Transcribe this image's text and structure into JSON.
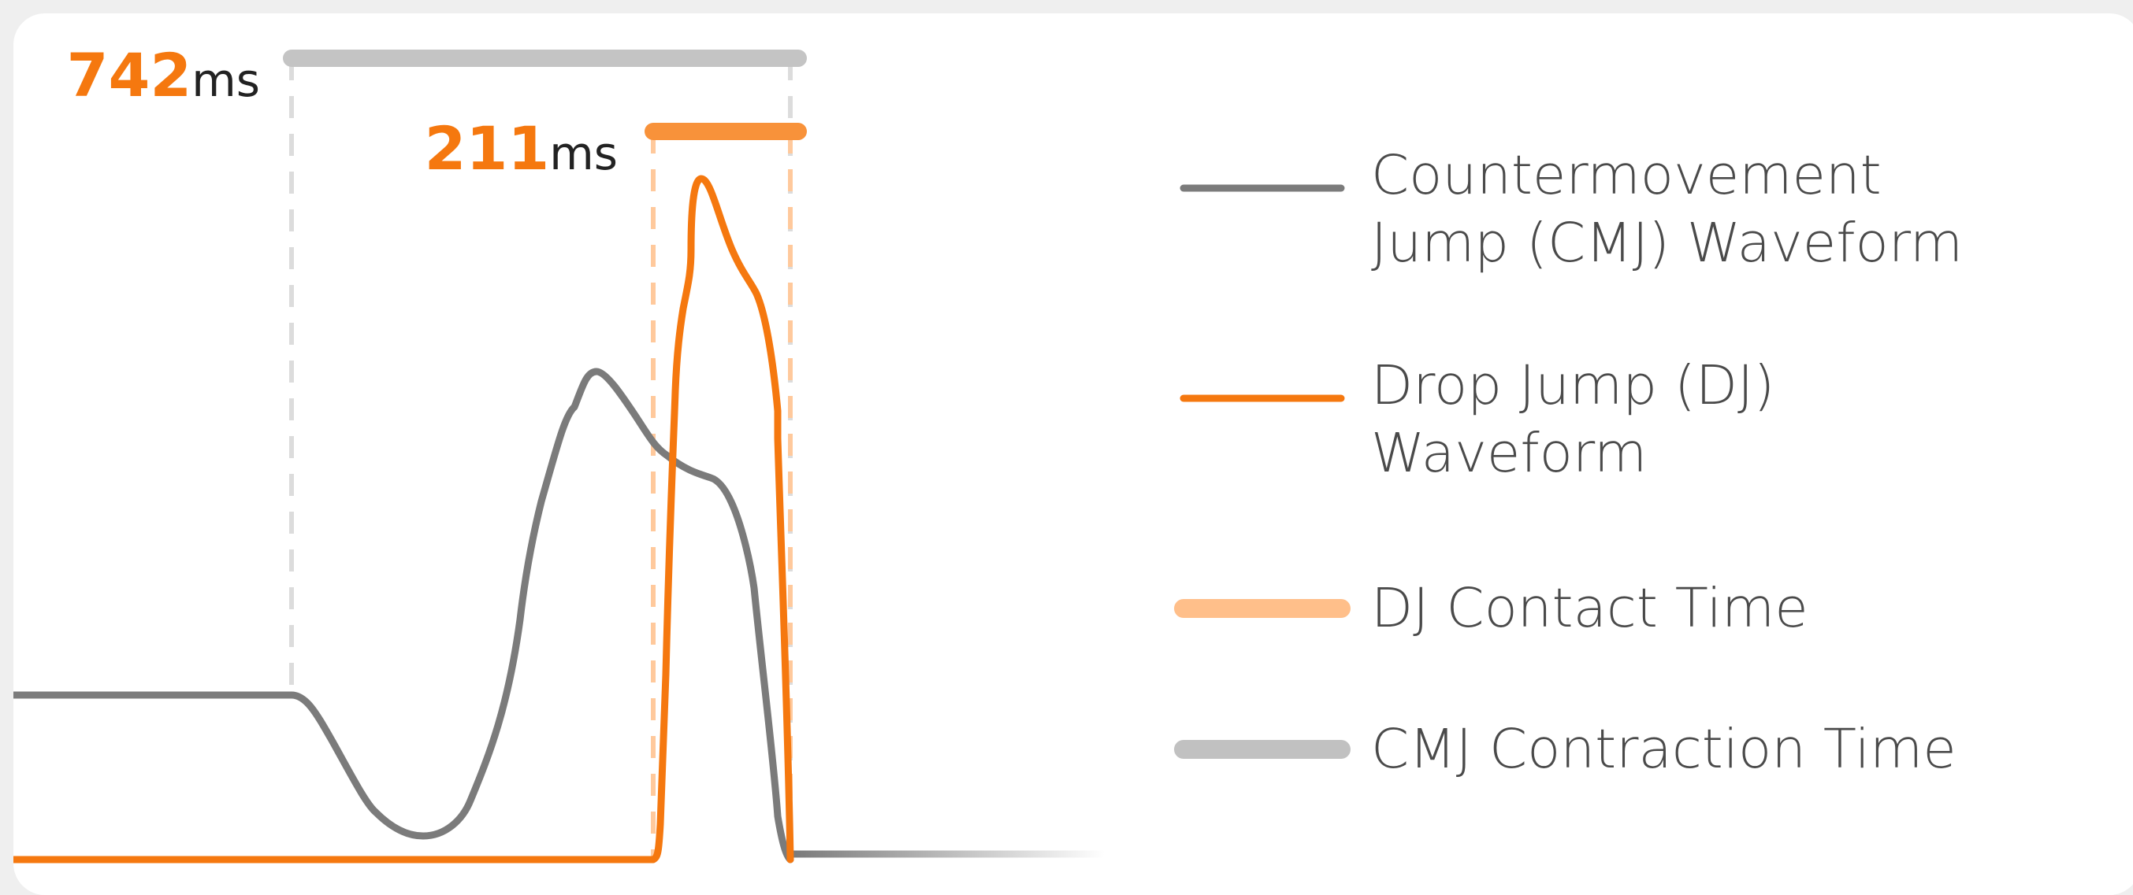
{
  "measurements": {
    "cmj": {
      "value": "742",
      "unit": "ms"
    },
    "dj": {
      "value": "211",
      "unit": "ms"
    }
  },
  "legend": {
    "cmj_waveform": {
      "line1": "Countermovement",
      "line2": "Jump (CMJ) Waveform",
      "color": "#7b7b7b",
      "icon": "gray-line"
    },
    "dj_waveform": {
      "line1": "Drop Jump (DJ)",
      "line2": "Waveform",
      "color": "#f5780f",
      "icon": "orange-line"
    },
    "dj_contact_time": {
      "label": "DJ Contact Time",
      "color": "#ffbf8a",
      "icon": "light-orange-bar"
    },
    "cmj_contraction_time": {
      "label": "CMJ Contraction Time",
      "color": "#c1c1c1",
      "icon": "light-gray-bar"
    }
  },
  "colors": {
    "orange": "#f5780f",
    "orange_bar": "#f8923a",
    "orange_light": "#ffc99c",
    "gray": "#7b7b7b",
    "gray_bar": "#c4c4c4",
    "gray_dash": "#dedede"
  }
}
